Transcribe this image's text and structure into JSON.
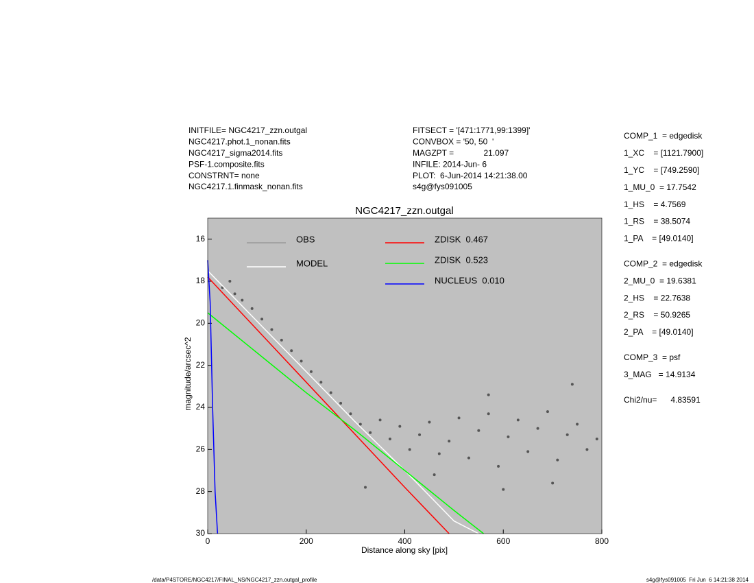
{
  "header": {
    "left": [
      "INITFILE= NGC4217_zzn.outgal",
      "NGC4217.phot.1_nonan.fits",
      "NGC4217_sigma2014.fits",
      "PSF-1.composite.fits",
      "CONSTRNT= none",
      "NGC4217.1.finmask_nonan.fits"
    ],
    "middle": [
      "FITSECT = '[471:1771,99:1399]'",
      "CONVBOX = '50, 50  '",
      "MAGZPT =             21.097",
      "INFILE: 2014-Jun- 6",
      "PLOT:  6-Jun-2014 14:21:38.00",
      "s4g@fys091005"
    ]
  },
  "parameters": [
    [
      "COMP_1  = edgedisk",
      "1_XC    = [1121.7900]",
      "1_YC    = [749.2590]",
      "1_MU_0  = 17.7542",
      "1_HS    = 4.7569",
      "1_RS    = 38.5074",
      "1_PA    = [49.0140]"
    ],
    [
      "COMP_2  = edgedisk",
      "2_MU_0  = 19.6381",
      "2_HS    = 22.7638",
      "2_RS    = 50.9265",
      "2_PA    = [49.0140]"
    ],
    [
      "COMP_3  = psf",
      "3_MAG   = 14.9134"
    ],
    [
      "Chi2/nu=      4.83591"
    ]
  ],
  "footer": {
    "left": "/data/P4STORE/NGC4217/FINAL_NS/NGC4217_zzn.outgal_profile",
    "right": "s4g@fys091005  Fri Jun  6 14:21:38 2014"
  },
  "chart_data": {
    "type": "scatter",
    "title": "NGC4217_zzn.outgal",
    "x_label": "Distance along sky [pix]",
    "y_label": "magnitude/arcsec^2",
    "xlim": [
      0,
      800
    ],
    "ylim": [
      30,
      15
    ],
    "xticks": [
      0,
      200,
      400,
      600,
      800
    ],
    "yticks": [
      16,
      18,
      20,
      22,
      24,
      26,
      28,
      30
    ],
    "background": "#c0c0c0",
    "series": [
      {
        "name": "OBS",
        "color": "#999999",
        "style": "points",
        "x": [
          30,
          45,
          55,
          70,
          90,
          110,
          130,
          150,
          170,
          190,
          210,
          230,
          250,
          270,
          290,
          310,
          330,
          350,
          370,
          390,
          410,
          430,
          450,
          470,
          490,
          510,
          530,
          550,
          570,
          590,
          610,
          630,
          650,
          670,
          690,
          710,
          730,
          750,
          770,
          790,
          320,
          700,
          460,
          600,
          740,
          570
        ],
        "values": [
          18.3,
          18.0,
          18.6,
          18.9,
          19.3,
          19.8,
          20.3,
          20.8,
          21.3,
          21.8,
          22.3,
          22.8,
          23.3,
          23.8,
          24.3,
          24.8,
          25.2,
          24.6,
          25.5,
          24.9,
          26.0,
          25.3,
          24.7,
          26.2,
          25.6,
          24.5,
          26.4,
          25.1,
          24.3,
          26.8,
          25.4,
          24.6,
          26.1,
          25.0,
          24.2,
          26.5,
          25.3,
          24.8,
          26.0,
          25.5,
          27.8,
          27.6,
          27.2,
          27.9,
          22.9,
          23.4
        ]
      },
      {
        "name": "MODEL",
        "color": "#ffffff",
        "style": "line",
        "x": [
          0,
          100,
          200,
          300,
          400,
          500,
          550
        ],
        "values": [
          17.5,
          19.9,
          22.3,
          24.7,
          27.0,
          29.4,
          30.0
        ]
      },
      {
        "name": "ZDISK  0.467",
        "color": "#ff0000",
        "style": "line",
        "x": [
          0,
          100,
          200,
          300,
          400,
          490
        ],
        "values": [
          17.8,
          20.3,
          22.8,
          25.3,
          27.8,
          30.0
        ]
      },
      {
        "name": "ZDISK  0.523",
        "color": "#00ff00",
        "style": "line",
        "x": [
          0,
          100,
          200,
          300,
          400,
          500,
          560
        ],
        "values": [
          19.5,
          21.4,
          23.3,
          25.1,
          27.0,
          28.9,
          30.0
        ]
      },
      {
        "name": "NUCLEUS  0.010",
        "color": "#0000ff",
        "style": "line",
        "x": [
          0,
          5,
          10,
          15,
          20
        ],
        "values": [
          17.0,
          19.0,
          24.0,
          28.0,
          30.0
        ]
      }
    ]
  }
}
